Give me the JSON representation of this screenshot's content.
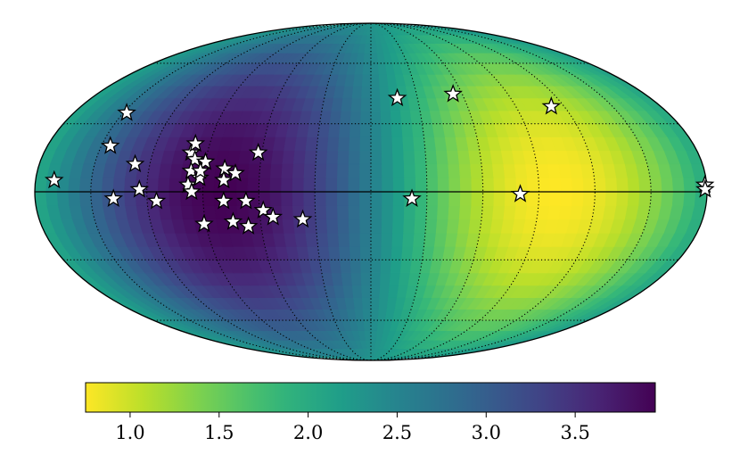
{
  "chart_data": {
    "type": "heatmap",
    "projection": "mollweide",
    "graticule": {
      "longitude_step_deg": 30,
      "latitude_step_deg": 30,
      "style": "dotted"
    },
    "colormap": "viridis_r",
    "color_range": [
      0.75,
      3.95
    ],
    "field": {
      "min": {
        "lon": -80,
        "lat": 0,
        "value": 3.95
      },
      "max": {
        "lon": 100,
        "lat": 0,
        "value": 0.75
      }
    },
    "stars": [
      {
        "lon": -170,
        "lat": 5
      },
      {
        "lon": -148,
        "lat": 35
      },
      {
        "lon": -145,
        "lat": 20
      },
      {
        "lon": -128,
        "lat": 12
      },
      {
        "lon": -124,
        "lat": 1
      },
      {
        "lon": -115,
        "lat": -4
      },
      {
        "lon": -98,
        "lat": 3
      },
      {
        "lon": -99,
        "lat": 17
      },
      {
        "lon": -96,
        "lat": 14
      },
      {
        "lon": -98,
        "lat": 21
      },
      {
        "lon": -90,
        "lat": 13
      },
      {
        "lon": -97,
        "lat": 9
      },
      {
        "lon": -92,
        "lat": 6
      },
      {
        "lon": -92,
        "lat": 9
      },
      {
        "lon": -79,
        "lat": 10
      },
      {
        "lon": -79,
        "lat": 5
      },
      {
        "lon": -73,
        "lat": 8
      },
      {
        "lon": -96,
        "lat": 0
      },
      {
        "lon": -79,
        "lat": -4
      },
      {
        "lon": -62,
        "lat": 17
      },
      {
        "lon": -67,
        "lat": -4
      },
      {
        "lon": -138,
        "lat": -3
      },
      {
        "lon": -58,
        "lat": -8
      },
      {
        "lon": -53,
        "lat": -11
      },
      {
        "lon": -37,
        "lat": -12
      },
      {
        "lon": -75,
        "lat": -13
      },
      {
        "lon": -67,
        "lat": -15
      },
      {
        "lon": -91,
        "lat": -14
      },
      {
        "lon": 17,
        "lat": 42
      },
      {
        "lon": 54,
        "lat": 44
      },
      {
        "lon": 112,
        "lat": 38
      },
      {
        "lon": 80,
        "lat": -1
      },
      {
        "lon": 22,
        "lat": -3
      },
      {
        "lon": 179,
        "lat": 3
      },
      {
        "lon": 179,
        "lat": 1
      }
    ],
    "colorbar": {
      "orientation": "horizontal",
      "ticks": [
        1.0,
        1.5,
        2.0,
        2.5,
        3.0,
        3.5
      ],
      "tick_labels": [
        "1.0",
        "1.5",
        "2.0",
        "2.5",
        "3.0",
        "3.5"
      ]
    }
  }
}
